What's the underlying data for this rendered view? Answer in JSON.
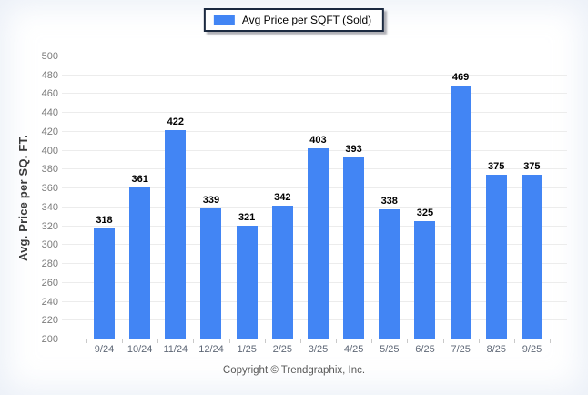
{
  "page": {
    "background": "#ffffff"
  },
  "legend": {
    "label": "Avg Price per SQFT (Sold)",
    "swatch_color": "#4285f4"
  },
  "footer": {
    "copyright": "Copyright © Trendgraphix, Inc."
  },
  "chart_data": {
    "type": "bar",
    "title": "",
    "categories": [
      "9/24",
      "10/24",
      "11/24",
      "12/24",
      "1/25",
      "2/25",
      "3/25",
      "4/25",
      "5/25",
      "6/25",
      "7/25",
      "8/25",
      "9/25"
    ],
    "series": [
      {
        "name": "Avg Price per SQFT (Sold)",
        "values": [
          318,
          361,
          422,
          339,
          321,
          342,
          403,
          393,
          338,
          325,
          469,
          375,
          375
        ]
      }
    ],
    "xlabel": "",
    "ylabel": "Avg. Price per SQ. FT.",
    "ylim": [
      200,
      500
    ],
    "ytick_step": 20,
    "grid": true,
    "legend_position": "top-center",
    "bar_color": "#4285f4",
    "gridline_color": "#ececec",
    "value_label_color": "#000000",
    "ytick_label_color": "#7b7b7b",
    "xtick_label_color": "#5f6877"
  }
}
